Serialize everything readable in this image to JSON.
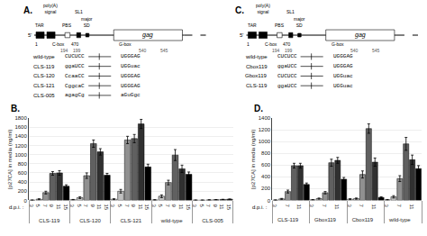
{
  "chart_data": [
    {
      "type": "diagram",
      "title": "A.",
      "annotations": [
        "5'",
        "gag",
        "TAR",
        "poly(A)\nsignal",
        "PBS",
        "SL1",
        "major\nSD",
        "1",
        "C-box",
        "470",
        "G-box",
        "194",
        "199",
        "540",
        "545"
      ],
      "rows": [
        [
          "wild-type",
          "CUCUCC",
          "UGGGAG"
        ],
        [
          "CLS-119",
          "ggaUCC",
          "UGGuac"
        ],
        [
          "CLS-120",
          "CcaaCC",
          "UGGGAG"
        ],
        [
          "CLS-121",
          "CggcaC",
          "UGGGAG"
        ],
        [
          "CLS-005",
          "agagCg",
          "aGuGgc"
        ]
      ]
    },
    {
      "type": "diagram",
      "title": "C.",
      "annotations": [
        "5'",
        "gag",
        "TAR",
        "poly(A)\nsignal",
        "PBS",
        "SL1",
        "major\nSD",
        "1",
        "C-box",
        "470",
        "G-box",
        "194",
        "199",
        "540",
        "545"
      ],
      "rows": [
        [
          "wild-type",
          "CUCUCC",
          "UGGGAG"
        ],
        [
          "Cbox119",
          "ggaUCC",
          "UGGGAG"
        ],
        [
          "Gbox119",
          "CUCUCC",
          "UGGuac"
        ],
        [
          "CLS-119",
          "ggaUCC",
          "UGGuac"
        ]
      ]
    },
    {
      "type": "bar",
      "title": "B.",
      "ylabel": "[p27CA] in media (ng/ml)",
      "xlabel": "d.p.i. :",
      "categories": [
        "CLS-119",
        "CLS-120",
        "CLS-121",
        "wild-type",
        "CLS-005"
      ],
      "series": [
        {
          "name": "3",
          "color": "#f0f0f0",
          "values": [
            5,
            15,
            25,
            10,
            5
          ],
          "errors": [
            2,
            5,
            10,
            5,
            1
          ]
        },
        {
          "name": "5",
          "color": "#c0c0c0",
          "values": [
            25,
            60,
            200,
            90,
            5
          ],
          "errors": [
            10,
            20,
            40,
            30,
            1
          ]
        },
        {
          "name": "7",
          "color": "#909090",
          "values": [
            170,
            540,
            1320,
            390,
            10
          ],
          "errors": [
            30,
            60,
            80,
            50,
            2
          ]
        },
        {
          "name": "9",
          "color": "#606060",
          "values": [
            590,
            1240,
            1350,
            990,
            15
          ],
          "errors": [
            40,
            80,
            90,
            120,
            3
          ]
        },
        {
          "name": "11",
          "color": "#303030",
          "values": [
            600,
            1060,
            1670,
            690,
            20
          ],
          "errors": [
            50,
            70,
            100,
            80,
            3
          ]
        },
        {
          "name": "15",
          "color": "#000000",
          "values": [
            310,
            550,
            730,
            570,
            25
          ],
          "errors": [
            30,
            40,
            60,
            50,
            5
          ]
        }
      ],
      "ylim": [
        0,
        1800
      ],
      "yticks": [
        0,
        200,
        400,
        600,
        800,
        1000,
        1200,
        1400,
        1600,
        1800
      ],
      "grid": true
    },
    {
      "type": "bar",
      "title": "D.",
      "ylabel": "[p27CA] in media (ng/ml)",
      "xlabel": "d.p.i. :",
      "categories": [
        "CLS-119",
        "Gbox119",
        "Cbox119",
        "wild-type"
      ],
      "series": [
        {
          "name": "3",
          "color": "#f0f0f0",
          "values": [
            5,
            10,
            20,
            10
          ],
          "errors": [
            2,
            3,
            8,
            5
          ]
        },
        {
          "name": "5",
          "color": "#c0c0c0",
          "values": [
            25,
            30,
            30,
            60
          ],
          "errors": [
            8,
            10,
            10,
            20
          ]
        },
        {
          "name": "7",
          "color": "#909090",
          "values": [
            150,
            130,
            440,
            370
          ],
          "errors": [
            25,
            20,
            60,
            50
          ]
        },
        {
          "name": "9",
          "color": "#606060",
          "values": [
            590,
            640,
            1220,
            960
          ],
          "errors": [
            40,
            60,
            80,
            110
          ]
        },
        {
          "name": "11",
          "color": "#303030",
          "values": [
            590,
            680,
            650,
            690
          ],
          "errors": [
            40,
            50,
            70,
            80
          ]
        },
        {
          "name": "15",
          "color": "#000000",
          "values": [
            270,
            360,
            50,
            540
          ],
          "errors": [
            25,
            30,
            10,
            50
          ]
        }
      ],
      "ylim": [
        0,
        1400
      ],
      "yticks": [
        0,
        200,
        400,
        600,
        800,
        1000,
        1200,
        1400
      ],
      "grid": true
    }
  ]
}
